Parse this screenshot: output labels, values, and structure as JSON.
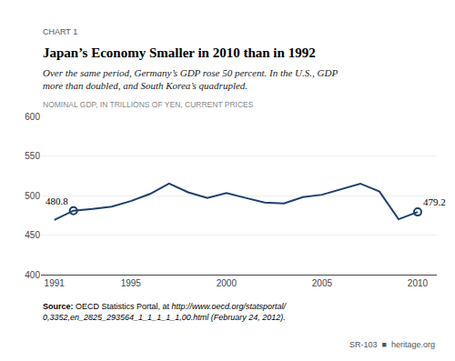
{
  "chart_data": {
    "type": "line",
    "chart_label": "CHART 1",
    "title": "Japan’s Economy Smaller in 2010 than in 1992",
    "subtitle": [
      "Over the same period, Germany’s GDP rose 50 percent. In the U.S., GDP",
      "more than doubled, and South Korea’s quadrupled."
    ],
    "y_label": "NOMINAL GDP, IN TRILLIONS OF YEN, CURRENT PRICES",
    "x": [
      1991,
      1992,
      1993,
      1994,
      1995,
      1996,
      1997,
      1998,
      1999,
      2000,
      2001,
      2002,
      2003,
      2004,
      2005,
      2006,
      2007,
      2008,
      2009,
      2010
    ],
    "values": [
      469.0,
      480.8,
      483.0,
      486.0,
      493.0,
      502.0,
      515.0,
      504.0,
      497.0,
      503.0,
      497.0,
      491.0,
      490.0,
      498.0,
      501.0,
      508.0,
      515.0,
      505.0,
      470.0,
      479.2
    ],
    "color": "#1f3f6e",
    "marker": "open circle",
    "annotations": [
      {
        "x": 1992,
        "y": 480.8,
        "text": "480.8",
        "side": "left"
      },
      {
        "x": 2010,
        "y": 479.2,
        "text": "479.2",
        "side": "right"
      }
    ],
    "xlim": [
      1990.3,
      2011.0
    ],
    "xticks": [
      1991,
      1995,
      2000,
      2005,
      2010
    ],
    "ylim": [
      400,
      600
    ],
    "yticks": [
      400,
      450,
      500,
      550,
      600
    ],
    "grid": true,
    "source": {
      "bold": "Source:",
      "normal": " OECD Statistics Portal, at ",
      "italic_line1": "http://www.oecd.org/statsportal/",
      "italic_line2": "0,3352,en_2825_293564_1_1_1_1_1,00.html",
      "italic_end": " (February 24, 2012)."
    },
    "footer": [
      "SR-103",
      "■",
      "heritage.org"
    ]
  }
}
